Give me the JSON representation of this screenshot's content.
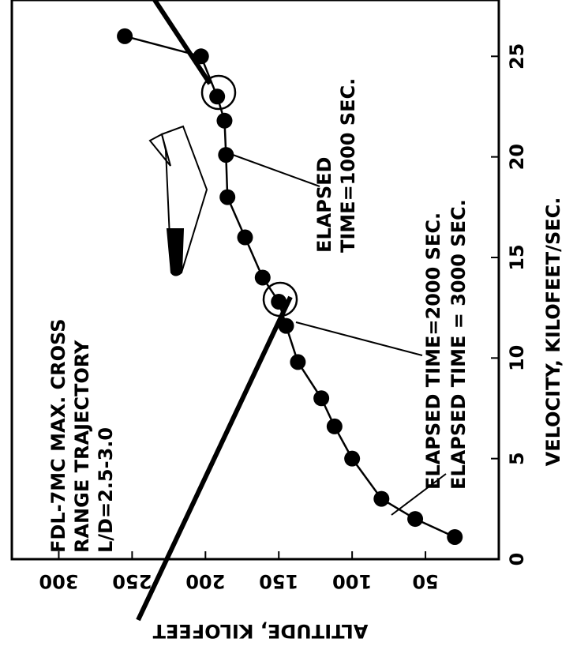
{
  "chart_data": {
    "type": "line",
    "x_label": "ALTITUDE, KILOFEET",
    "y_label": "VELOCITY, KILOFEET/SEC.",
    "annotations": [
      "FDL-7MC MAX. CROSS",
      "RANGE TRAJECTORY",
      "L/D=2.5-3.0",
      "ELAPSED",
      "TIME=1000 SEC.",
      "ELAPSED TIME=2000 SEC.",
      "ELAPSED TIME = 3000 SEC."
    ],
    "x": [
      255,
      203,
      192,
      187,
      186,
      185,
      173,
      161,
      150,
      145,
      137,
      121,
      112,
      100,
      80,
      57,
      30
    ],
    "series": [
      {
        "color": "#000000",
        "values": [
          26,
          25,
          23,
          21.8,
          20.1,
          18,
          16,
          14,
          12.8,
          11.6,
          9.8,
          8,
          6.6,
          5,
          3,
          2,
          1.1
        ]
      }
    ],
    "xlim": [
      332,
      0
    ],
    "xticks": [
      300,
      250,
      200,
      150,
      100,
      50
    ],
    "ylim": [
      0,
      27.8
    ],
    "yticks": [
      0,
      5,
      10,
      15,
      20,
      25
    ]
  }
}
